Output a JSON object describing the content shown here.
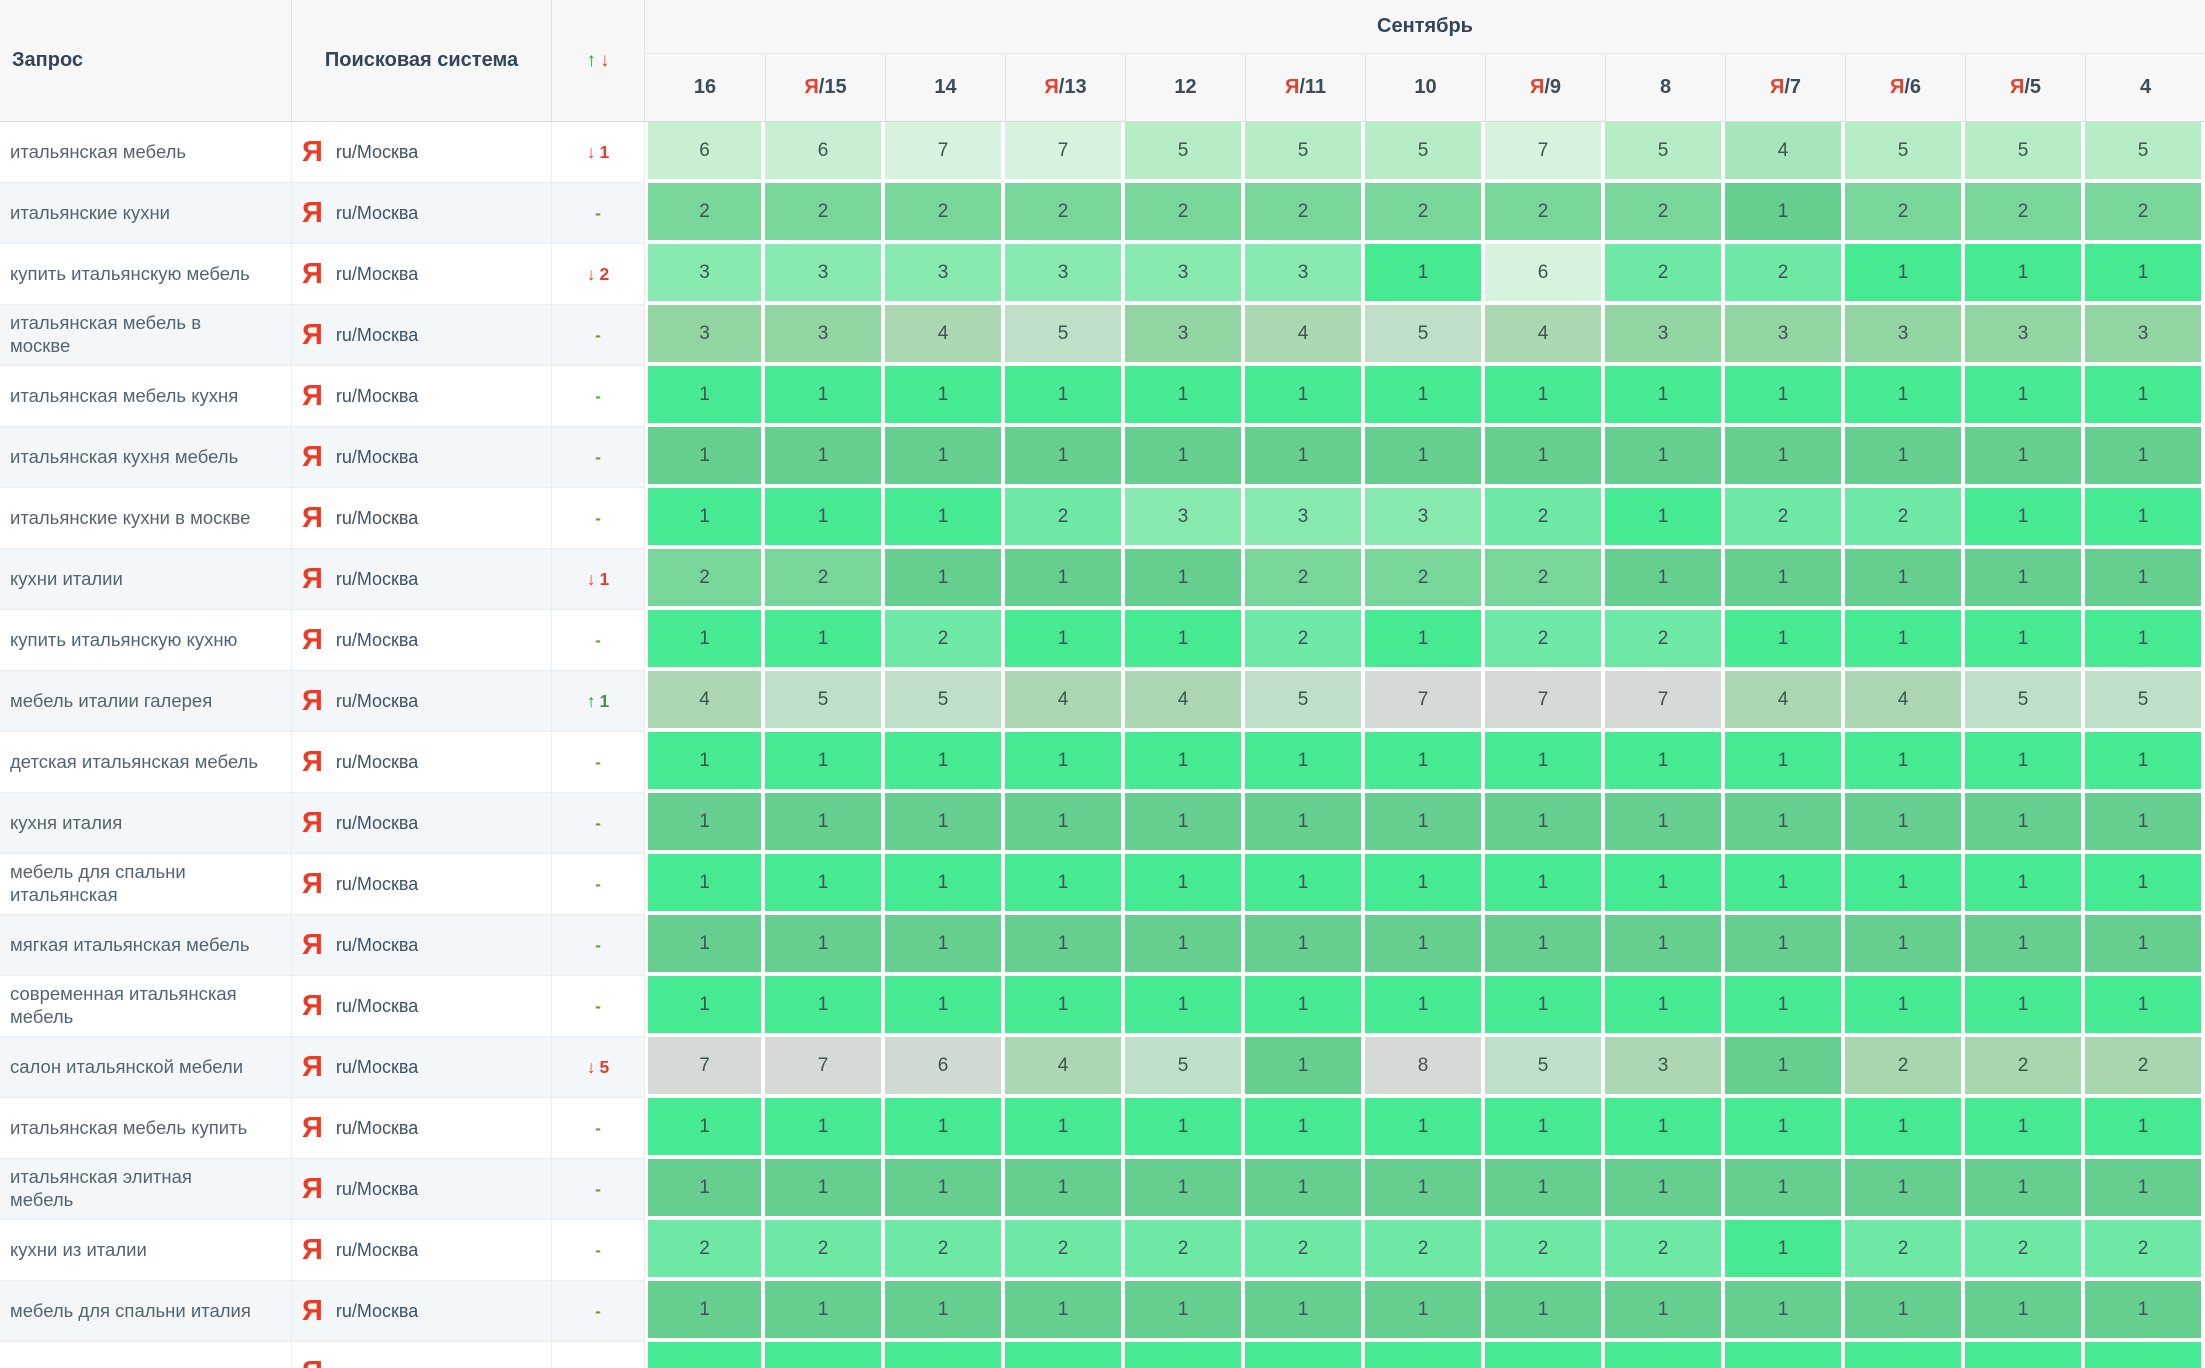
{
  "header": {
    "query_label": "Запрос",
    "engine_label": "Поисковая система",
    "sort_up": "↑",
    "sort_down": "↓",
    "month": "Сентябрь",
    "dates": [
      {
        "ya": false,
        "day": "16"
      },
      {
        "ya": true,
        "day": "15"
      },
      {
        "ya": false,
        "day": "14"
      },
      {
        "ya": true,
        "day": "13"
      },
      {
        "ya": false,
        "day": "12"
      },
      {
        "ya": true,
        "day": "11"
      },
      {
        "ya": false,
        "day": "10"
      },
      {
        "ya": true,
        "day": "9"
      },
      {
        "ya": false,
        "day": "8"
      },
      {
        "ya": true,
        "day": "7"
      },
      {
        "ya": true,
        "day": "6"
      },
      {
        "ya": true,
        "day": "5"
      },
      {
        "ya": false,
        "day": "4"
      }
    ]
  },
  "engine": {
    "icon": "Я",
    "region": "ru/Москва"
  },
  "colors": {
    "accent_red": "#e8402f",
    "accent_green": "#0ea64a",
    "dash_green": "#6f9c3f",
    "palette": {
      "A": "#45ea92",
      "B": "#66cf90",
      "C": "#6ee8a6",
      "D": "#79d69a",
      "E": "#88e9b1",
      "F": "#92d5a3",
      "G": "#a8e5ba",
      "H": "#abd7b3",
      "I": "#b7edc6",
      "J": "#c0dfc7",
      "K": "#c7f0d2",
      "L": "#cfdad0",
      "M": "#d7f3de",
      "N": "#d6dad6",
      "P": "#a7d6af"
    }
  },
  "rows": [
    {
      "query": "итальянская мебель",
      "change": {
        "dir": "down",
        "num": "1"
      },
      "values": [
        6,
        6,
        7,
        7,
        5,
        5,
        5,
        7,
        5,
        4,
        5,
        5,
        5
      ],
      "shades": [
        "K",
        "K",
        "M",
        "M",
        "I",
        "I",
        "I",
        "M",
        "I",
        "G",
        "I",
        "I",
        "I"
      ]
    },
    {
      "query": "итальянские кухни",
      "change": {
        "dir": "none",
        "num": ""
      },
      "values": [
        2,
        2,
        2,
        2,
        2,
        2,
        2,
        2,
        2,
        1,
        2,
        2,
        2
      ],
      "shades": [
        "D",
        "D",
        "D",
        "D",
        "D",
        "D",
        "D",
        "D",
        "D",
        "B",
        "D",
        "D",
        "D"
      ]
    },
    {
      "query": "купить итальянскую мебель",
      "change": {
        "dir": "down",
        "num": "2"
      },
      "values": [
        3,
        3,
        3,
        3,
        3,
        3,
        1,
        6,
        2,
        2,
        1,
        1,
        1
      ],
      "shades": [
        "E",
        "E",
        "E",
        "E",
        "E",
        "E",
        "A",
        "M",
        "C",
        "C",
        "A",
        "A",
        "A"
      ]
    },
    {
      "query": "итальянская мебель в\nмоскве",
      "change": {
        "dir": "none",
        "num": ""
      },
      "values": [
        3,
        3,
        4,
        5,
        3,
        4,
        5,
        4,
        3,
        3,
        3,
        3,
        3
      ],
      "shades": [
        "F",
        "F",
        "H",
        "J",
        "F",
        "H",
        "J",
        "H",
        "F",
        "F",
        "F",
        "F",
        "F"
      ]
    },
    {
      "query": "итальянская мебель кухня",
      "change": {
        "dir": "none",
        "num": ""
      },
      "values": [
        1,
        1,
        1,
        1,
        1,
        1,
        1,
        1,
        1,
        1,
        1,
        1,
        1
      ],
      "shades": [
        "A",
        "A",
        "A",
        "A",
        "A",
        "A",
        "A",
        "A",
        "A",
        "A",
        "A",
        "A",
        "A"
      ]
    },
    {
      "query": "итальянская кухня мебель",
      "change": {
        "dir": "none",
        "num": ""
      },
      "values": [
        1,
        1,
        1,
        1,
        1,
        1,
        1,
        1,
        1,
        1,
        1,
        1,
        1
      ],
      "shades": [
        "B",
        "B",
        "B",
        "B",
        "B",
        "B",
        "B",
        "B",
        "B",
        "B",
        "B",
        "B",
        "B"
      ]
    },
    {
      "query": "итальянские кухни в москве",
      "change": {
        "dir": "none",
        "num": ""
      },
      "values": [
        1,
        1,
        1,
        2,
        3,
        3,
        3,
        2,
        1,
        2,
        2,
        1,
        1
      ],
      "shades": [
        "A",
        "A",
        "A",
        "C",
        "E",
        "E",
        "E",
        "C",
        "A",
        "C",
        "C",
        "A",
        "A"
      ]
    },
    {
      "query": "кухни италии",
      "change": {
        "dir": "down",
        "num": "1"
      },
      "values": [
        2,
        2,
        1,
        1,
        1,
        2,
        2,
        2,
        1,
        1,
        1,
        1,
        1
      ],
      "shades": [
        "D",
        "D",
        "B",
        "B",
        "B",
        "D",
        "D",
        "D",
        "B",
        "B",
        "B",
        "B",
        "B"
      ]
    },
    {
      "query": "купить итальянскую кухню",
      "change": {
        "dir": "none",
        "num": ""
      },
      "values": [
        1,
        1,
        2,
        1,
        1,
        2,
        1,
        2,
        2,
        1,
        1,
        1,
        1
      ],
      "shades": [
        "A",
        "A",
        "C",
        "A",
        "A",
        "C",
        "A",
        "C",
        "C",
        "A",
        "A",
        "A",
        "A"
      ]
    },
    {
      "query": "мебель италии галерея",
      "change": {
        "dir": "up",
        "num": "1"
      },
      "values": [
        4,
        5,
        5,
        4,
        4,
        5,
        7,
        7,
        7,
        4,
        4,
        5,
        5
      ],
      "shades": [
        "H",
        "J",
        "J",
        "H",
        "H",
        "J",
        "N",
        "N",
        "N",
        "H",
        "H",
        "J",
        "J"
      ]
    },
    {
      "query": "детская итальянская мебель",
      "change": {
        "dir": "none",
        "num": ""
      },
      "values": [
        1,
        1,
        1,
        1,
        1,
        1,
        1,
        1,
        1,
        1,
        1,
        1,
        1
      ],
      "shades": [
        "A",
        "A",
        "A",
        "A",
        "A",
        "A",
        "A",
        "A",
        "A",
        "A",
        "A",
        "A",
        "A"
      ]
    },
    {
      "query": "кухня италия",
      "change": {
        "dir": "none",
        "num": ""
      },
      "values": [
        1,
        1,
        1,
        1,
        1,
        1,
        1,
        1,
        1,
        1,
        1,
        1,
        1
      ],
      "shades": [
        "B",
        "B",
        "B",
        "B",
        "B",
        "B",
        "B",
        "B",
        "B",
        "B",
        "B",
        "B",
        "B"
      ]
    },
    {
      "query": "мебель для спальни\nитальянская",
      "change": {
        "dir": "none",
        "num": ""
      },
      "values": [
        1,
        1,
        1,
        1,
        1,
        1,
        1,
        1,
        1,
        1,
        1,
        1,
        1
      ],
      "shades": [
        "A",
        "A",
        "A",
        "A",
        "A",
        "A",
        "A",
        "A",
        "A",
        "A",
        "A",
        "A",
        "A"
      ]
    },
    {
      "query": "мягкая итальянская мебель",
      "change": {
        "dir": "none",
        "num": ""
      },
      "values": [
        1,
        1,
        1,
        1,
        1,
        1,
        1,
        1,
        1,
        1,
        1,
        1,
        1
      ],
      "shades": [
        "B",
        "B",
        "B",
        "B",
        "B",
        "B",
        "B",
        "B",
        "B",
        "B",
        "B",
        "B",
        "B"
      ]
    },
    {
      "query": "современная итальянская\nмебель",
      "change": {
        "dir": "none",
        "num": ""
      },
      "values": [
        1,
        1,
        1,
        1,
        1,
        1,
        1,
        1,
        1,
        1,
        1,
        1,
        1
      ],
      "shades": [
        "A",
        "A",
        "A",
        "A",
        "A",
        "A",
        "A",
        "A",
        "A",
        "A",
        "A",
        "A",
        "A"
      ]
    },
    {
      "query": "салон итальянской мебели",
      "change": {
        "dir": "down",
        "num": "5"
      },
      "values": [
        7,
        7,
        6,
        4,
        5,
        1,
        8,
        5,
        3,
        1,
        2,
        2,
        2
      ],
      "shades": [
        "N",
        "N",
        "L",
        "H",
        "J",
        "B",
        "N",
        "J",
        "H",
        "B",
        "P",
        "P",
        "P"
      ]
    },
    {
      "query": "итальянская мебель купить",
      "change": {
        "dir": "none",
        "num": ""
      },
      "values": [
        1,
        1,
        1,
        1,
        1,
        1,
        1,
        1,
        1,
        1,
        1,
        1,
        1
      ],
      "shades": [
        "A",
        "A",
        "A",
        "A",
        "A",
        "A",
        "A",
        "A",
        "A",
        "A",
        "A",
        "A",
        "A"
      ]
    },
    {
      "query": "итальянская элитная\nмебель",
      "change": {
        "dir": "none",
        "num": ""
      },
      "values": [
        1,
        1,
        1,
        1,
        1,
        1,
        1,
        1,
        1,
        1,
        1,
        1,
        1
      ],
      "shades": [
        "B",
        "B",
        "B",
        "B",
        "B",
        "B",
        "B",
        "B",
        "B",
        "B",
        "B",
        "B",
        "B"
      ]
    },
    {
      "query": "кухни из италии",
      "change": {
        "dir": "none",
        "num": ""
      },
      "values": [
        2,
        2,
        2,
        2,
        2,
        2,
        2,
        2,
        2,
        1,
        2,
        2,
        2
      ],
      "shades": [
        "C",
        "C",
        "C",
        "C",
        "C",
        "C",
        "C",
        "C",
        "C",
        "A",
        "C",
        "C",
        "C"
      ]
    },
    {
      "query": "мебель для спальни италия",
      "change": {
        "dir": "none",
        "num": ""
      },
      "values": [
        1,
        1,
        1,
        1,
        1,
        1,
        1,
        1,
        1,
        1,
        1,
        1,
        1
      ],
      "shades": [
        "B",
        "B",
        "B",
        "B",
        "B",
        "B",
        "B",
        "B",
        "B",
        "B",
        "B",
        "B",
        "B"
      ]
    },
    {
      "query": "",
      "partial": true,
      "change": {
        "dir": "hidden",
        "num": ""
      },
      "values": [
        "",
        "",
        "",
        "",
        "",
        "",
        "",
        "",
        "",
        "",
        "",
        "",
        ""
      ],
      "shades": [
        "A",
        "A",
        "A",
        "A",
        "A",
        "A",
        "A",
        "A",
        "A",
        "A",
        "A",
        "A",
        "A"
      ]
    }
  ]
}
